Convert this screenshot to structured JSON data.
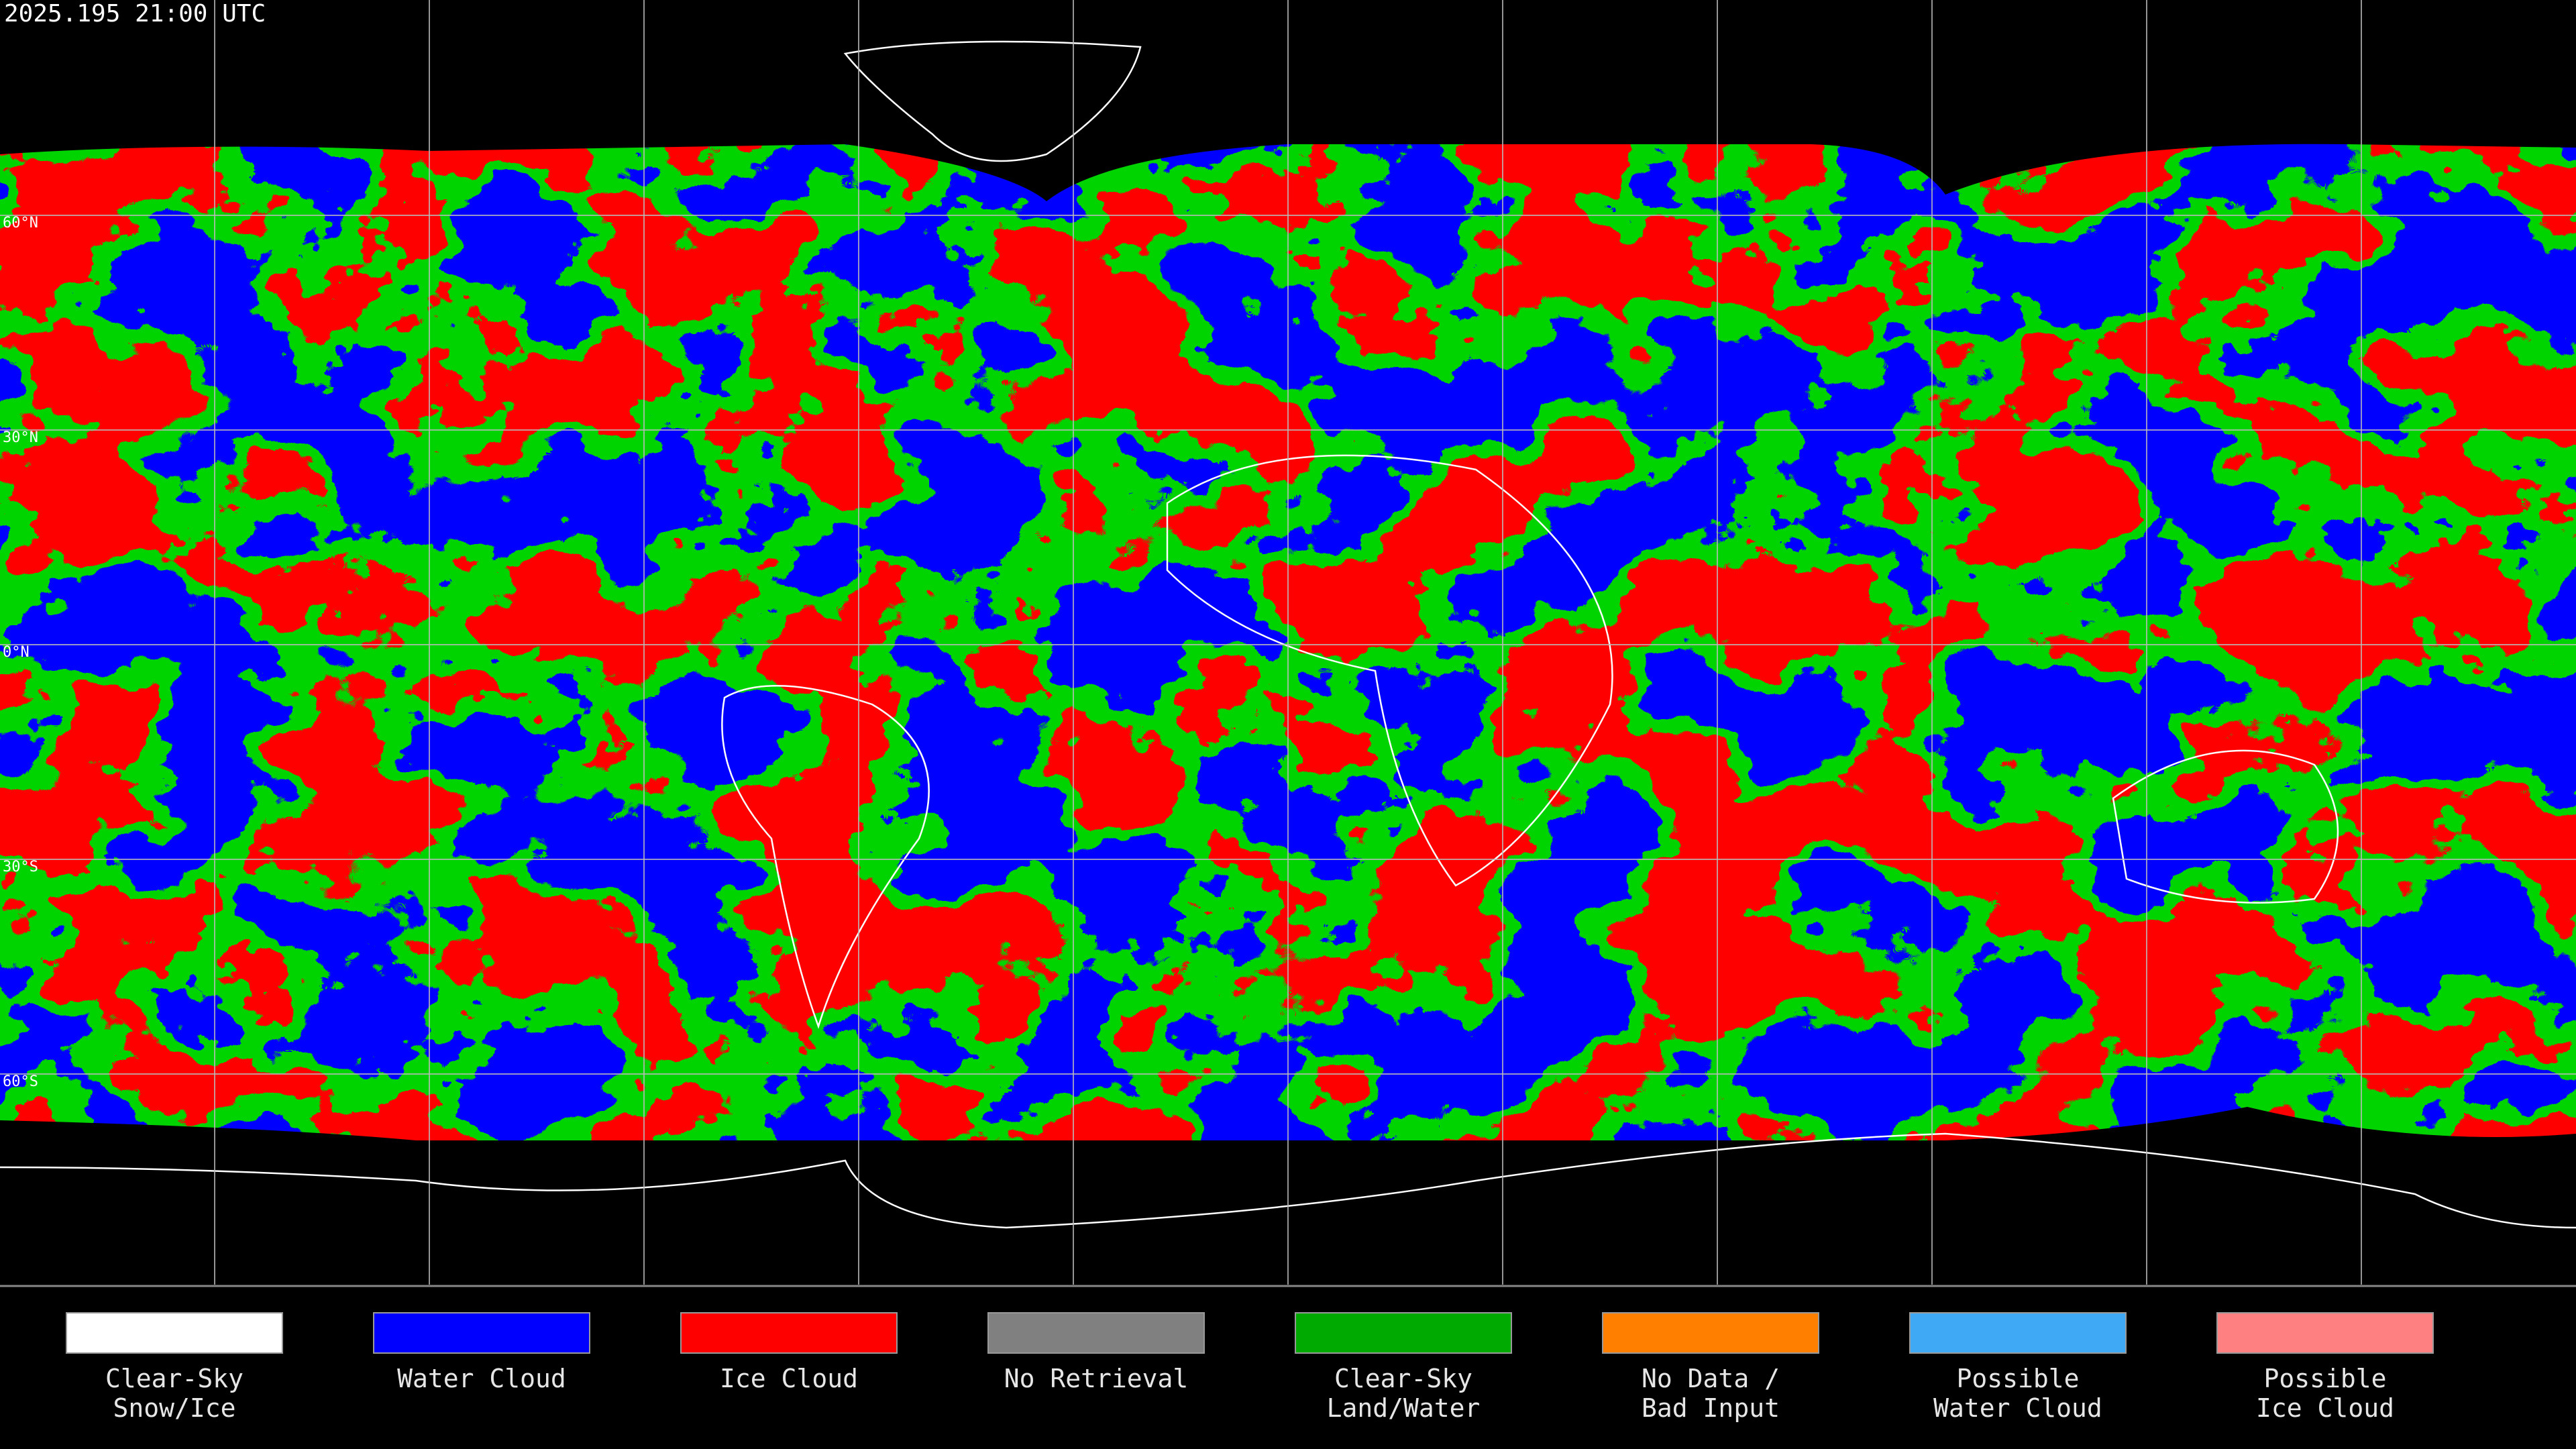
{
  "header": {
    "timestamp": "2025.195 21:00 UTC"
  },
  "latitude_labels": [
    "60°N",
    "30°N",
    "0°N",
    "30°S",
    "60°S"
  ],
  "legend": {
    "items": [
      {
        "label": [
          "Clear-Sky",
          "Snow/Ice"
        ],
        "color": "#ffffff"
      },
      {
        "label": [
          "Water Cloud"
        ],
        "color": "#0000ff"
      },
      {
        "label": [
          "Ice Cloud"
        ],
        "color": "#ff0000"
      },
      {
        "label": [
          "No Retrieval"
        ],
        "color": "#808080"
      },
      {
        "label": [
          "Clear-Sky",
          "Land/Water"
        ],
        "color": "#00aa00"
      },
      {
        "label": [
          "No Data /",
          "Bad Input"
        ],
        "color": "#ff8000"
      },
      {
        "label": [
          "Possible",
          "Water Cloud"
        ],
        "color": "#3fa9f5"
      },
      {
        "label": [
          "Possible",
          "Ice Cloud"
        ],
        "color": "#ff8080"
      }
    ]
  }
}
